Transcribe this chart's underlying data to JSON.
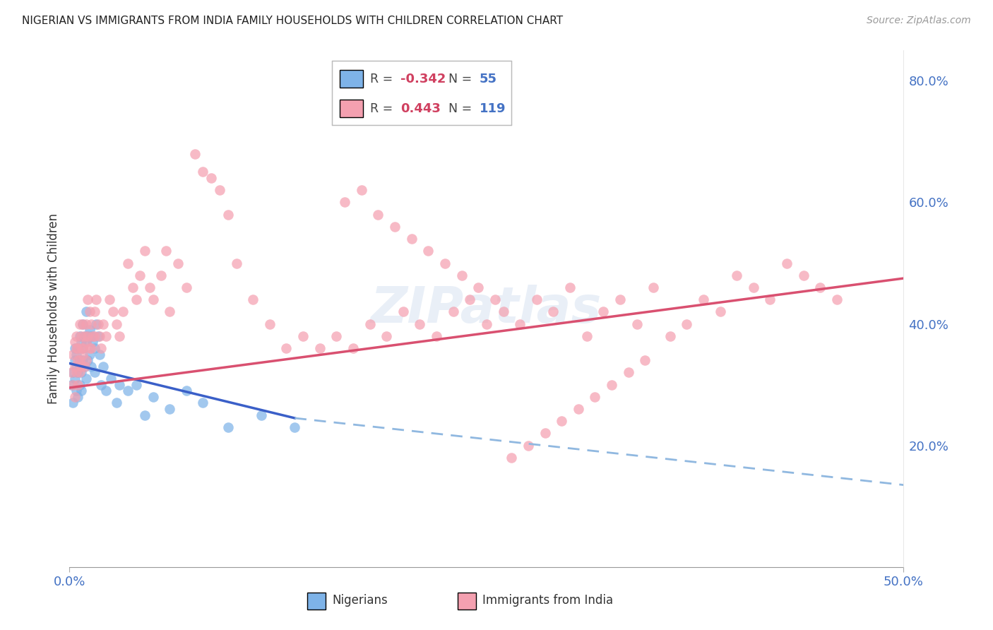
{
  "title": "NIGERIAN VS IMMIGRANTS FROM INDIA FAMILY HOUSEHOLDS WITH CHILDREN CORRELATION CHART",
  "source": "Source: ZipAtlas.com",
  "ylabel": "Family Households with Children",
  "xmin": 0.0,
  "xmax": 0.5,
  "ymin": 0.0,
  "ymax": 0.85,
  "ytick_values": [
    0.0,
    0.2,
    0.4,
    0.6,
    0.8
  ],
  "ytick_labels": [
    "",
    "20.0%",
    "40.0%",
    "60.0%",
    "80.0%"
  ],
  "xtick_values": [
    0.0,
    0.5
  ],
  "xtick_labels": [
    "0.0%",
    "50.0%"
  ],
  "series1_color": "#7EB3E8",
  "series2_color": "#F4A0B0",
  "trendline1_color": "#3A5FC8",
  "trendline2_color": "#D95070",
  "trendline_dashed_color": "#90B8E0",
  "R1": -0.342,
  "N1": 55,
  "R2": 0.443,
  "N2": 119,
  "background_color": "#FFFFFF",
  "grid_color": "#CCCCCC",
  "axis_color": "#4472C4",
  "title_color": "#222222",
  "trendline1_start_x": 0.0,
  "trendline1_end_x": 0.135,
  "trendline1_start_y": 0.335,
  "trendline1_end_y": 0.245,
  "trendline1_dash_end_x": 0.5,
  "trendline1_dash_end_y": 0.135,
  "trendline2_start_x": 0.0,
  "trendline2_end_x": 0.5,
  "trendline2_start_y": 0.295,
  "trendline2_end_y": 0.475,
  "nigerian_x": [
    0.001,
    0.002,
    0.002,
    0.003,
    0.003,
    0.003,
    0.004,
    0.004,
    0.004,
    0.005,
    0.005,
    0.005,
    0.006,
    0.006,
    0.006,
    0.006,
    0.007,
    0.007,
    0.007,
    0.008,
    0.008,
    0.008,
    0.009,
    0.009,
    0.01,
    0.01,
    0.01,
    0.011,
    0.011,
    0.012,
    0.012,
    0.013,
    0.013,
    0.014,
    0.015,
    0.015,
    0.016,
    0.017,
    0.018,
    0.019,
    0.02,
    0.022,
    0.025,
    0.028,
    0.03,
    0.035,
    0.04,
    0.045,
    0.05,
    0.06,
    0.07,
    0.08,
    0.095,
    0.115,
    0.135
  ],
  "nigerian_y": [
    0.3,
    0.32,
    0.27,
    0.34,
    0.31,
    0.36,
    0.33,
    0.29,
    0.35,
    0.32,
    0.28,
    0.36,
    0.34,
    0.3,
    0.38,
    0.33,
    0.37,
    0.32,
    0.29,
    0.36,
    0.34,
    0.4,
    0.38,
    0.33,
    0.37,
    0.42,
    0.31,
    0.38,
    0.34,
    0.39,
    0.35,
    0.38,
    0.33,
    0.37,
    0.36,
    0.32,
    0.4,
    0.38,
    0.35,
    0.3,
    0.33,
    0.29,
    0.31,
    0.27,
    0.3,
    0.29,
    0.3,
    0.25,
    0.28,
    0.26,
    0.29,
    0.27,
    0.23,
    0.25,
    0.23
  ],
  "india_x": [
    0.001,
    0.002,
    0.002,
    0.003,
    0.003,
    0.003,
    0.004,
    0.004,
    0.004,
    0.005,
    0.005,
    0.005,
    0.006,
    0.006,
    0.006,
    0.007,
    0.007,
    0.007,
    0.008,
    0.008,
    0.008,
    0.009,
    0.009,
    0.01,
    0.01,
    0.01,
    0.011,
    0.011,
    0.012,
    0.012,
    0.013,
    0.013,
    0.014,
    0.015,
    0.015,
    0.016,
    0.017,
    0.018,
    0.019,
    0.02,
    0.022,
    0.024,
    0.026,
    0.028,
    0.03,
    0.032,
    0.035,
    0.038,
    0.04,
    0.042,
    0.045,
    0.048,
    0.05,
    0.055,
    0.058,
    0.06,
    0.065,
    0.07,
    0.075,
    0.08,
    0.085,
    0.09,
    0.095,
    0.1,
    0.11,
    0.12,
    0.13,
    0.14,
    0.15,
    0.16,
    0.17,
    0.18,
    0.19,
    0.2,
    0.21,
    0.22,
    0.23,
    0.24,
    0.25,
    0.26,
    0.27,
    0.28,
    0.29,
    0.3,
    0.31,
    0.32,
    0.33,
    0.34,
    0.35,
    0.36,
    0.37,
    0.38,
    0.39,
    0.4,
    0.41,
    0.42,
    0.43,
    0.44,
    0.45,
    0.46,
    0.165,
    0.175,
    0.185,
    0.195,
    0.205,
    0.215,
    0.225,
    0.235,
    0.245,
    0.255,
    0.265,
    0.275,
    0.285,
    0.295,
    0.305,
    0.315,
    0.325,
    0.335,
    0.345
  ],
  "india_y": [
    0.32,
    0.35,
    0.3,
    0.37,
    0.33,
    0.28,
    0.36,
    0.32,
    0.38,
    0.34,
    0.3,
    0.36,
    0.34,
    0.4,
    0.32,
    0.36,
    0.38,
    0.33,
    0.36,
    0.4,
    0.35,
    0.38,
    0.33,
    0.37,
    0.34,
    0.4,
    0.38,
    0.44,
    0.36,
    0.42,
    0.4,
    0.36,
    0.38,
    0.42,
    0.38,
    0.44,
    0.4,
    0.38,
    0.36,
    0.4,
    0.38,
    0.44,
    0.42,
    0.4,
    0.38,
    0.42,
    0.5,
    0.46,
    0.44,
    0.48,
    0.52,
    0.46,
    0.44,
    0.48,
    0.52,
    0.42,
    0.5,
    0.46,
    0.68,
    0.65,
    0.64,
    0.62,
    0.58,
    0.5,
    0.44,
    0.4,
    0.36,
    0.38,
    0.36,
    0.38,
    0.36,
    0.4,
    0.38,
    0.42,
    0.4,
    0.38,
    0.42,
    0.44,
    0.4,
    0.42,
    0.4,
    0.44,
    0.42,
    0.46,
    0.38,
    0.42,
    0.44,
    0.4,
    0.46,
    0.38,
    0.4,
    0.44,
    0.42,
    0.48,
    0.46,
    0.44,
    0.5,
    0.48,
    0.46,
    0.44,
    0.6,
    0.62,
    0.58,
    0.56,
    0.54,
    0.52,
    0.5,
    0.48,
    0.46,
    0.44,
    0.18,
    0.2,
    0.22,
    0.24,
    0.26,
    0.28,
    0.3,
    0.32,
    0.34
  ]
}
